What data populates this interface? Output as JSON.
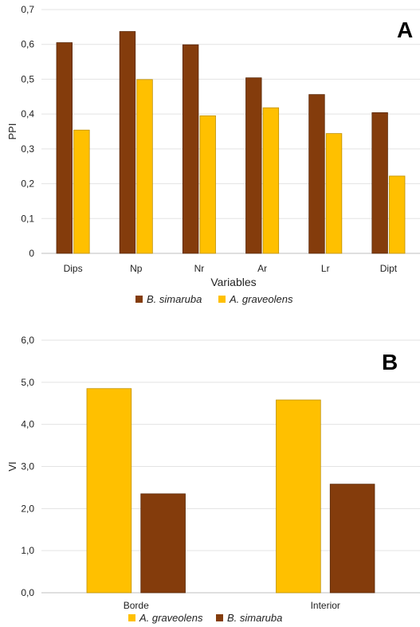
{
  "chart_data": [
    {
      "type": "bar",
      "panel_label": "A",
      "categories": [
        "Dips",
        "Np",
        "Nr",
        "Ar",
        "Lr",
        "Dipt"
      ],
      "series": [
        {
          "name": "B. simaruba",
          "color": "#843C0C",
          "values": [
            0.605,
            0.637,
            0.599,
            0.504,
            0.456,
            0.404
          ]
        },
        {
          "name": "A. graveolens",
          "color": "#FFC000",
          "values": [
            0.354,
            0.499,
            0.395,
            0.418,
            0.344,
            0.222
          ]
        }
      ],
      "xlabel": "Variables",
      "ylabel": "PPI",
      "ylim": [
        0,
        0.7
      ],
      "yticks": [
        "0",
        "0,1",
        "0,2",
        "0,3",
        "0,4",
        "0,5",
        "0,6",
        "0,7"
      ],
      "grid": true,
      "legend": "bottom"
    },
    {
      "type": "bar",
      "panel_label": "B",
      "categories": [
        "Borde",
        "Interior"
      ],
      "series": [
        {
          "name": "A. graveolens",
          "color": "#FFC000",
          "values": [
            4.85,
            4.58
          ]
        },
        {
          "name": "B. simaruba",
          "color": "#843C0C",
          "values": [
            2.35,
            2.58
          ]
        }
      ],
      "xlabel": "",
      "ylabel": "VI",
      "ylim": [
        0,
        6
      ],
      "yticks": [
        "0,0",
        "1,0",
        "2,0",
        "3,0",
        "4,0",
        "5,0",
        "6,0"
      ],
      "grid": true,
      "legend": "bottom"
    }
  ]
}
